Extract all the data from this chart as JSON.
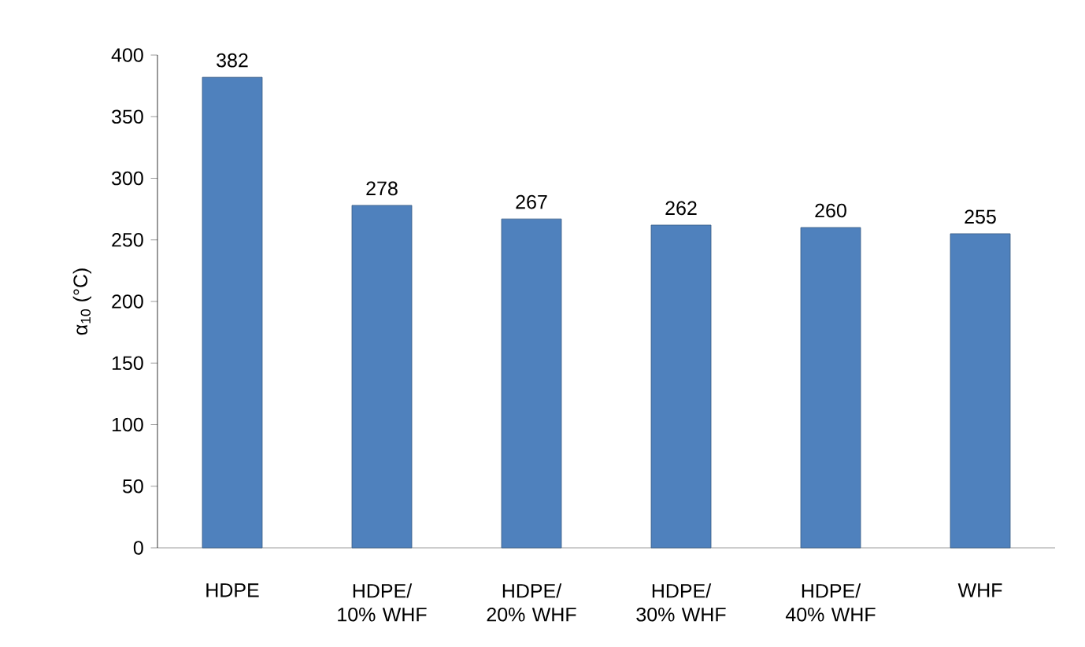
{
  "chart_data": {
    "type": "bar",
    "ylabel": "α$_{10}$ (°C)",
    "categories": [
      "HDPE",
      "HDPE/ 10% WHF",
      "HDPE/ 20% WHF",
      "HDPE/ 30% WHF",
      "HDPE/ 40% WHF",
      "WHF"
    ],
    "values": [
      382,
      278,
      267,
      262,
      260,
      255
    ],
    "color": "#4f81bd",
    "ylim": [
      0,
      400
    ],
    "yticks": [
      0,
      50,
      100,
      150,
      200,
      250,
      300,
      350,
      400
    ],
    "data_labels": true
  }
}
